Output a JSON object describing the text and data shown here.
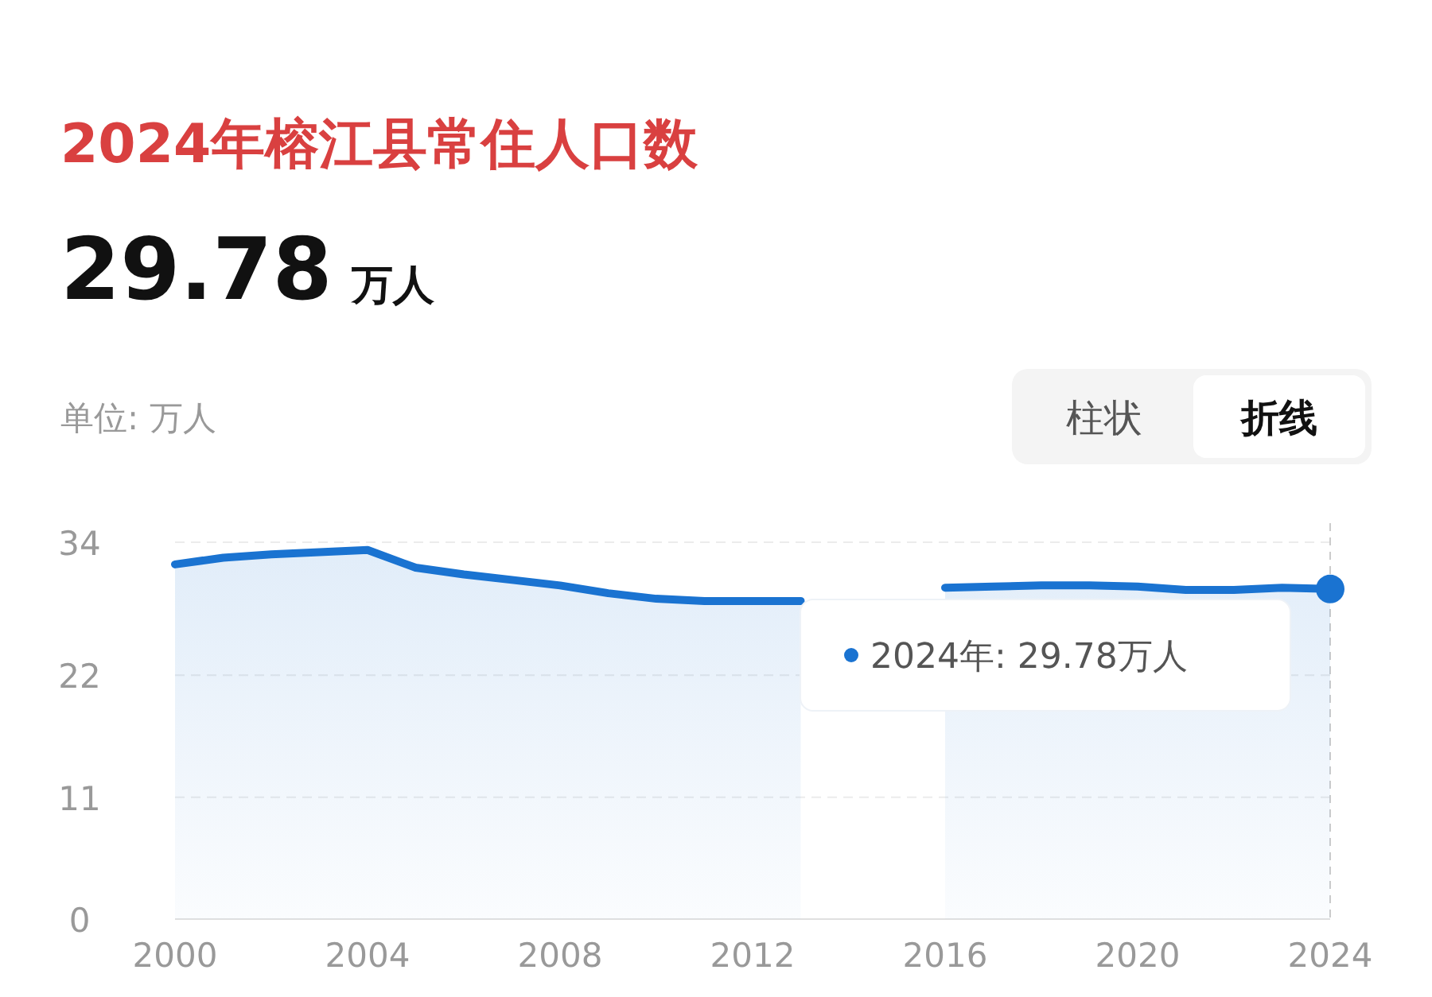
{
  "chart_data": {
    "type": "area",
    "title": "2024年榕江县常住人口数",
    "subtitle": "29.78 万人",
    "ylabel": "单位: 万人",
    "annotations": [
      "柱状",
      "折线",
      "2024年: 29.78万人"
    ],
    "x": [
      2000,
      2001,
      2002,
      2003,
      2004,
      2005,
      2006,
      2007,
      2008,
      2009,
      2010,
      2011,
      2012,
      2013,
      2014,
      2015,
      2016,
      2017,
      2018,
      2019,
      2020,
      2021,
      2022,
      2023,
      2024
    ],
    "series": [
      {
        "color": "#1a73d1",
        "values": [
          32.0,
          32.6,
          32.9,
          33.1,
          33.3,
          31.7,
          31.1,
          30.6,
          30.1,
          29.4,
          28.9,
          28.7,
          28.7,
          28.7,
          null,
          null,
          29.9,
          30.0,
          30.1,
          30.1,
          30.0,
          29.7,
          29.7,
          29.9,
          29.78
        ]
      },
      {
        "type": "scatter",
        "color": "#1a73d1",
        "x": [
          2024
        ],
        "values": [
          29.78
        ]
      }
    ],
    "xlim": [
      2000,
      2024
    ],
    "xticks": [
      2000,
      2004,
      2008,
      2012,
      2016,
      2020,
      2024
    ],
    "ylim": [
      0,
      34
    ],
    "yticks": [
      0,
      11,
      22,
      34
    ],
    "grid": "y",
    "line_style": "solid",
    "ref_lines": [
      {
        "axis": "x",
        "value": 2024,
        "color": "#cccccc",
        "line_style": "dashed"
      }
    ]
  }
}
